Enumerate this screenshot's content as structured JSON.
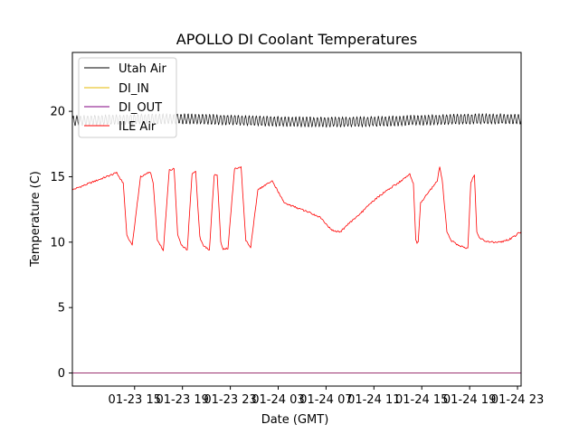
{
  "chart_data": {
    "type": "line",
    "title": "APOLLO DI Coolant Temperatures",
    "xlabel": "Date (GMT)",
    "ylabel": "Temperature (C)",
    "x_unit": "hours since 01-23 11:00 GMT",
    "xlim": [
      -1.2,
      36.3
    ],
    "ylim": [
      -1,
      24.5
    ],
    "grid": false,
    "legend_position": "top-left",
    "x_ticks": [
      {
        "x": 4,
        "label": "01-23 15"
      },
      {
        "x": 8,
        "label": "01-23 19"
      },
      {
        "x": 12,
        "label": "01-23 23"
      },
      {
        "x": 16,
        "label": "01-24 03"
      },
      {
        "x": 20,
        "label": "01-24 07"
      },
      {
        "x": 24,
        "label": "01-24 11"
      },
      {
        "x": 28,
        "label": "01-24 15"
      },
      {
        "x": 32,
        "label": "01-24 19"
      },
      {
        "x": 36,
        "label": "01-24 23"
      }
    ],
    "y_ticks": [
      {
        "y": 0,
        "label": "0"
      },
      {
        "y": 5,
        "label": "5"
      },
      {
        "y": 10,
        "label": "10"
      },
      {
        "y": 15,
        "label": "15"
      },
      {
        "y": 20,
        "label": "20"
      }
    ],
    "series": [
      {
        "name": "Utah Air",
        "color": "#000000",
        "style": "oscillating",
        "x": [
          -1.2,
          36.3
        ],
        "y": [
          19.3,
          19.3
        ],
        "oscillation_amplitude": 0.35,
        "oscillation_period_hours": 0.3
      },
      {
        "name": "DI_IN",
        "color": "#e6b800",
        "x": [
          -1.2,
          36.3
        ],
        "y": [
          0,
          0
        ]
      },
      {
        "name": "DI_OUT",
        "color": "#800080",
        "x": [
          -1.2,
          36.3
        ],
        "y": [
          0,
          0
        ]
      },
      {
        "name": "ILE Air",
        "color": "#ff0000",
        "x": [
          -1.2,
          2.5,
          3.05,
          3.35,
          3.8,
          4.5,
          5.3,
          5.55,
          5.9,
          6.4,
          6.9,
          7.3,
          7.6,
          7.9,
          8.4,
          8.8,
          9.1,
          9.45,
          9.7,
          10.25,
          10.65,
          10.9,
          11.2,
          11.4,
          11.8,
          12.35,
          12.9,
          13.3,
          13.7,
          14.3,
          15.5,
          16.5,
          18.5,
          19.5,
          20.5,
          21.2,
          22.0,
          23.0,
          24.0,
          25.0,
          26.0,
          27.0,
          27.3,
          27.5,
          27.6,
          27.7,
          27.9,
          28.4,
          29.3,
          29.5,
          29.7,
          30.1,
          30.5,
          31.2,
          31.85,
          32.1,
          32.4,
          32.6,
          32.8,
          33.2,
          33.8,
          34.5,
          35.3,
          35.8,
          36.3
        ],
        "y": [
          14.0,
          15.3,
          14.5,
          10.5,
          9.8,
          15.0,
          15.4,
          14.5,
          10.2,
          9.4,
          15.5,
          15.6,
          10.6,
          9.8,
          9.4,
          15.2,
          15.4,
          10.4,
          9.8,
          9.4,
          15.1,
          15.2,
          10.0,
          9.5,
          9.5,
          15.6,
          15.7,
          10.1,
          9.6,
          14.0,
          14.7,
          13.0,
          12.3,
          11.9,
          10.9,
          10.8,
          11.5,
          12.3,
          13.2,
          13.9,
          14.5,
          15.2,
          14.5,
          10.2,
          9.9,
          10.0,
          13.0,
          13.6,
          14.7,
          15.8,
          14.8,
          10.8,
          10.1,
          9.7,
          9.5,
          14.6,
          15.1,
          10.8,
          10.4,
          10.1,
          10.0,
          10.0,
          10.2,
          10.5,
          10.8
        ]
      }
    ]
  }
}
